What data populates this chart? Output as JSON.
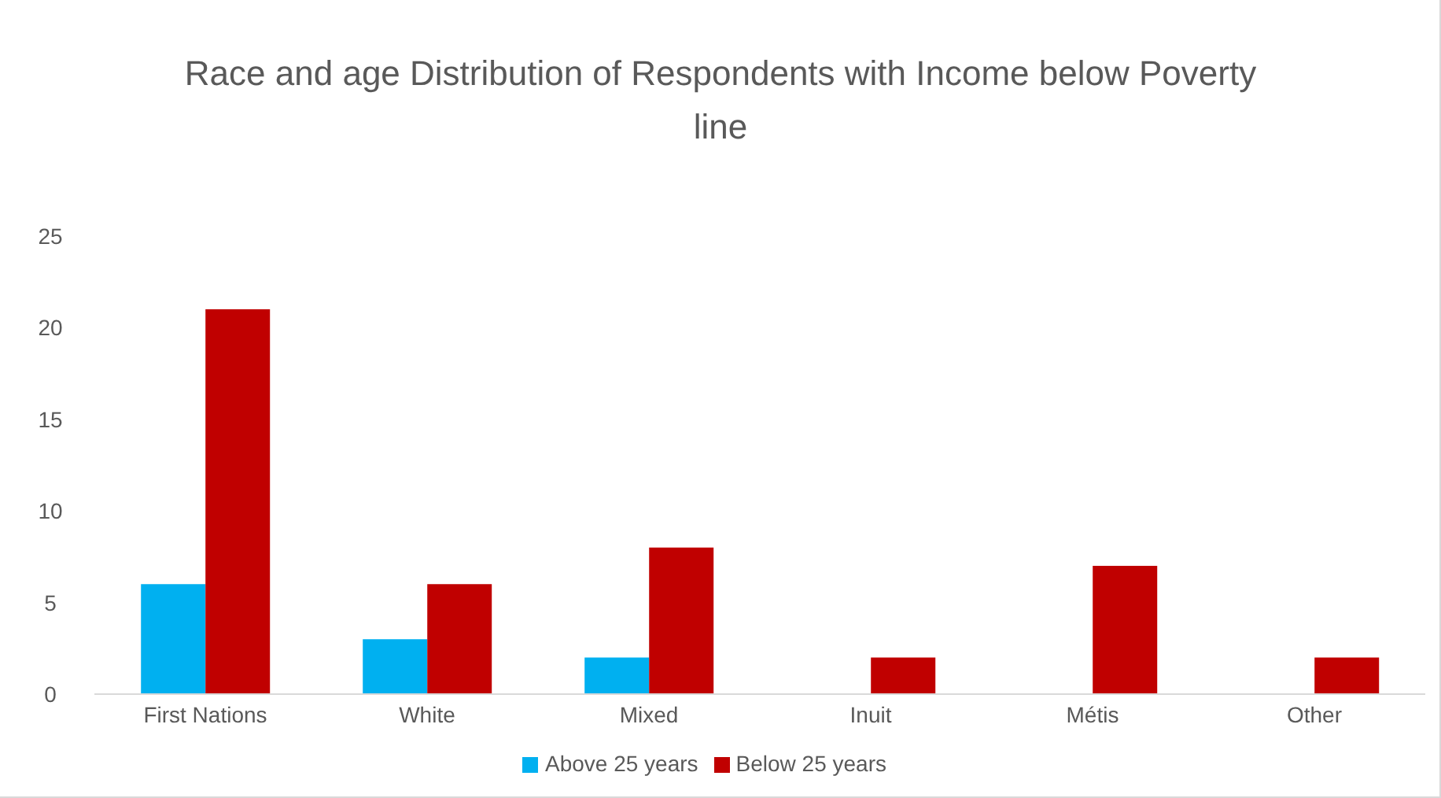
{
  "chart_data": {
    "type": "bar",
    "title": "Race and age Distribution of Respondents with Income below Poverty line",
    "categories": [
      "First Nations",
      "White",
      "Mixed",
      "Inuit",
      "Métis",
      "Other"
    ],
    "series": [
      {
        "name": "Above 25 years",
        "color": "#00b0f0",
        "values": [
          6,
          3,
          2,
          0,
          0,
          0
        ]
      },
      {
        "name": "Below 25 years",
        "color": "#c00000",
        "values": [
          21,
          6,
          8,
          2,
          7,
          2
        ]
      }
    ],
    "ylim": [
      0,
      25
    ],
    "yticks": [
      0,
      5,
      10,
      15,
      20,
      25
    ],
    "grid": false,
    "legend": "bottom"
  }
}
